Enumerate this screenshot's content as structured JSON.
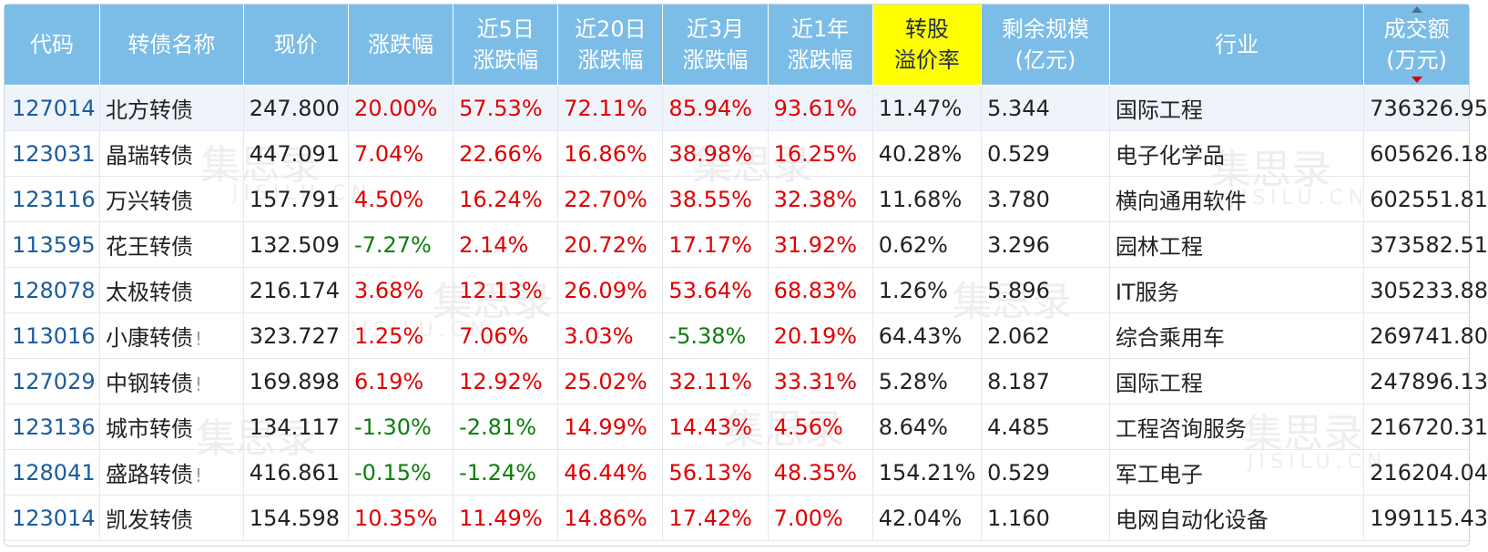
{
  "headers": {
    "code": "代码",
    "name": "转债名称",
    "price": "现价",
    "change": "涨跌幅",
    "chg5d_1": "近5日",
    "chg5d_2": "涨跌幅",
    "chg20d_1": "近20日",
    "chg20d_2": "涨跌幅",
    "chg3m_1": "近3月",
    "chg3m_2": "涨跌幅",
    "chg1y_1": "近1年",
    "chg1y_2": "涨跌幅",
    "premium_1": "转股",
    "premium_2": "溢价率",
    "remaining_1": "剩余规模",
    "remaining_2": "(亿元)",
    "industry": "行业",
    "turnover_1": "成交额",
    "turnover_2": "(万元)"
  },
  "sort": {
    "column": "turnover",
    "direction": "descending"
  },
  "colors": {
    "up": "#e00000",
    "down": "#0b7f0b",
    "header": "#7cbde8",
    "highlight": "#ffff00",
    "code_link": "#1a5c9e"
  },
  "watermark": {
    "text": "集思录",
    "latin": "JISILU.CN"
  },
  "rows": [
    {
      "code": "127014",
      "name": "北方转债",
      "warn": "",
      "price": "247.800",
      "change": "20.00%",
      "chg5d": "57.53%",
      "chg20d": "72.11%",
      "chg3m": "85.94%",
      "chg1y": "93.61%",
      "premium": "11.47%",
      "remaining": "5.344",
      "industry": "国际工程",
      "turnover": "736326.95"
    },
    {
      "code": "123031",
      "name": "晶瑞转债",
      "warn": "",
      "price": "447.091",
      "change": "7.04%",
      "chg5d": "22.66%",
      "chg20d": "16.86%",
      "chg3m": "38.98%",
      "chg1y": "16.25%",
      "premium": "40.28%",
      "remaining": "0.529",
      "industry": "电子化学品",
      "turnover": "605626.18"
    },
    {
      "code": "123116",
      "name": "万兴转债",
      "warn": "",
      "price": "157.791",
      "change": "4.50%",
      "chg5d": "16.24%",
      "chg20d": "22.70%",
      "chg3m": "38.55%",
      "chg1y": "32.38%",
      "premium": "11.68%",
      "remaining": "3.780",
      "industry": "横向通用软件",
      "turnover": "602551.81"
    },
    {
      "code": "113595",
      "name": "花王转债",
      "warn": "",
      "price": "132.509",
      "change": "-7.27%",
      "chg5d": "2.14%",
      "chg20d": "20.72%",
      "chg3m": "17.17%",
      "chg1y": "31.92%",
      "premium": "0.62%",
      "remaining": "3.296",
      "industry": "园林工程",
      "turnover": "373582.51"
    },
    {
      "code": "128078",
      "name": "太极转债",
      "warn": "",
      "price": "216.174",
      "change": "3.68%",
      "chg5d": "12.13%",
      "chg20d": "26.09%",
      "chg3m": "53.64%",
      "chg1y": "68.83%",
      "premium": "1.26%",
      "remaining": "5.896",
      "industry": "IT服务",
      "turnover": "305233.88"
    },
    {
      "code": "113016",
      "name": "小康转债",
      "warn": "!",
      "price": "323.727",
      "change": "1.25%",
      "chg5d": "7.06%",
      "chg20d": "3.03%",
      "chg3m": "-5.38%",
      "chg1y": "20.19%",
      "premium": "64.43%",
      "remaining": "2.062",
      "industry": "综合乘用车",
      "turnover": "269741.80"
    },
    {
      "code": "127029",
      "name": "中钢转债",
      "warn": "!",
      "price": "169.898",
      "change": "6.19%",
      "chg5d": "12.92%",
      "chg20d": "25.02%",
      "chg3m": "32.11%",
      "chg1y": "33.31%",
      "premium": "5.28%",
      "remaining": "8.187",
      "industry": "国际工程",
      "turnover": "247896.13"
    },
    {
      "code": "123136",
      "name": "城市转债",
      "warn": "",
      "price": "134.117",
      "change": "-1.30%",
      "chg5d": "-2.81%",
      "chg20d": "14.99%",
      "chg3m": "14.43%",
      "chg1y": "4.56%",
      "premium": "8.64%",
      "remaining": "4.485",
      "industry": "工程咨询服务",
      "turnover": "216720.31"
    },
    {
      "code": "128041",
      "name": "盛路转债",
      "warn": "!",
      "price": "416.861",
      "change": "-0.15%",
      "chg5d": "-1.24%",
      "chg20d": "46.44%",
      "chg3m": "56.13%",
      "chg1y": "48.35%",
      "premium": "154.21%",
      "remaining": "0.529",
      "industry": "军工电子",
      "turnover": "216204.04"
    },
    {
      "code": "123014",
      "name": "凯发转债",
      "warn": "",
      "price": "154.598",
      "change": "10.35%",
      "chg5d": "11.49%",
      "chg20d": "14.86%",
      "chg3m": "17.42%",
      "chg1y": "7.00%",
      "premium": "42.04%",
      "remaining": "1.160",
      "industry": "电网自动化设备",
      "turnover": "199115.43"
    }
  ]
}
